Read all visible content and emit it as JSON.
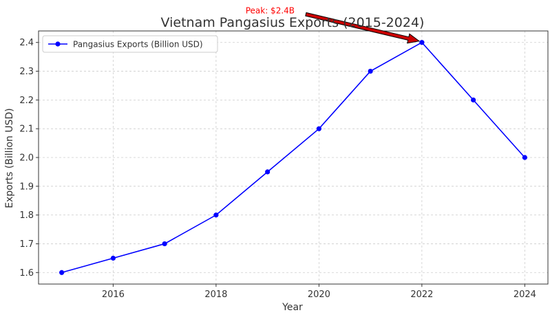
{
  "chart_data": {
    "type": "line",
    "title": "Vietnam Pangasius Exports (2015-2024)",
    "xlabel": "Year",
    "ylabel": "Exports (Billion USD)",
    "xlim": [
      2014.55,
      2024.45
    ],
    "ylim": [
      1.56,
      2.44
    ],
    "xticks": [
      2016,
      2018,
      2020,
      2022,
      2024
    ],
    "yticks": [
      1.6,
      1.7,
      1.8,
      1.9,
      2.0,
      2.1,
      2.2,
      2.3,
      2.4
    ],
    "grid": true,
    "legend_position": "top-left",
    "x": [
      2015,
      2016,
      2017,
      2018,
      2019,
      2020,
      2021,
      2022,
      2023,
      2024
    ],
    "series": [
      {
        "name": "Pangasius Exports (Billion USD)",
        "color": "#0000ff",
        "values": [
          1.6,
          1.65,
          1.7,
          1.8,
          1.95,
          2.1,
          2.3,
          2.4,
          2.2,
          2.0
        ]
      }
    ],
    "annotation": {
      "text": "Peak: $2.4B",
      "x": 2022,
      "y": 2.4,
      "text_x": 2019.05,
      "text_y": 2.51,
      "color": "#ff0000",
      "arrow_color": "#cc0000"
    }
  }
}
